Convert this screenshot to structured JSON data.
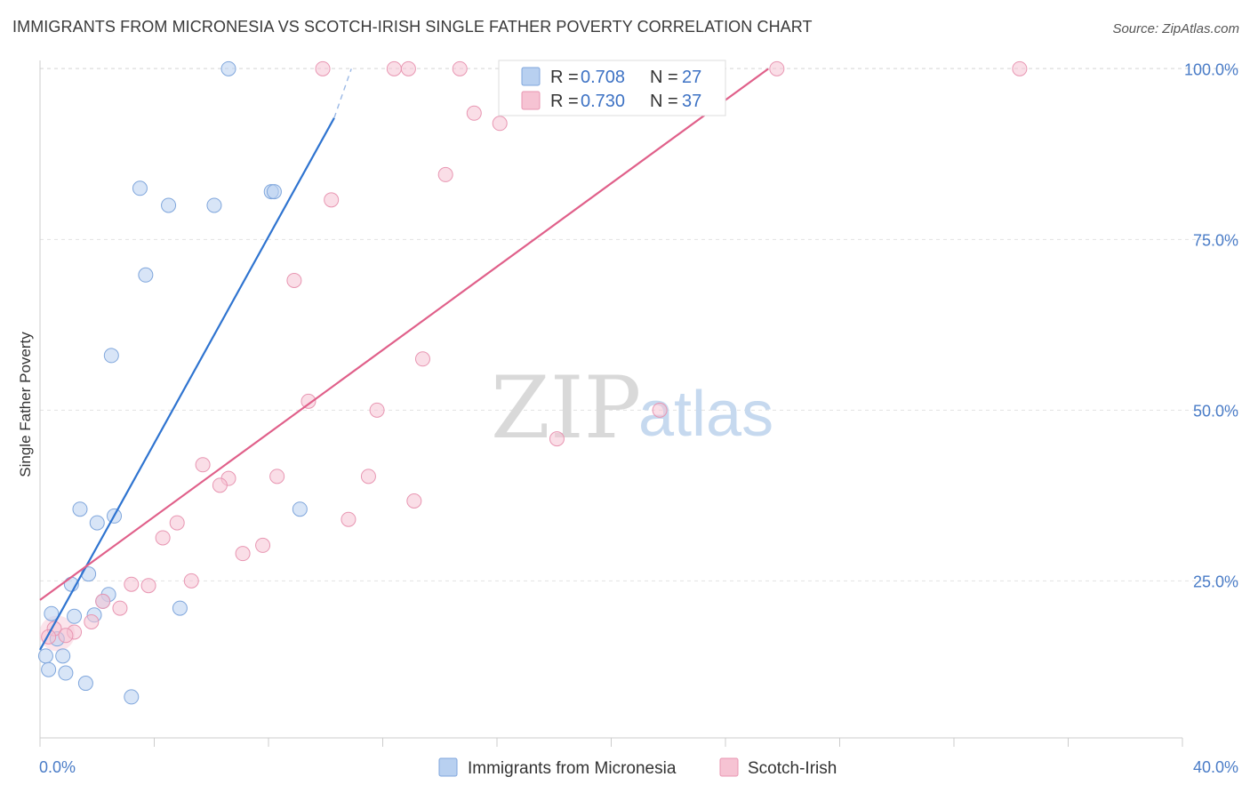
{
  "header": {
    "title": "IMMIGRANTS FROM MICRONESIA VS SCOTCH-IRISH SINGLE FATHER POVERTY CORRELATION CHART",
    "source": "Source: ZipAtlas.com"
  },
  "watermark": {
    "zip": "ZIP",
    "atlas": "atlas"
  },
  "legend": {
    "r_label": "R =",
    "n_label": "N =",
    "entries": [
      {
        "r": "0.708",
        "n": "27"
      },
      {
        "r": "0.730",
        "n": "37"
      }
    ]
  },
  "colors": {
    "blue_fill": "#b8d0f0",
    "blue_stroke": "#7fa6dc",
    "blue_line": "#2f74d0",
    "pink_fill": "#f6c3d3",
    "pink_stroke": "#e896b2",
    "pink_line": "#e0608a",
    "tick_text": "#4a7cc7"
  },
  "chart_data": {
    "type": "scatter",
    "title": "IMMIGRANTS FROM MICRONESIA VS SCOTCH-IRISH SINGLE FATHER POVERTY CORRELATION CHART",
    "xlabel": "",
    "ylabel": "Single Father Poverty",
    "xlim": [
      0,
      40
    ],
    "ylim": [
      2,
      102
    ],
    "x_tick_labels": [
      "0.0%",
      "40.0%"
    ],
    "y_ticks": [
      25,
      50,
      75,
      100
    ],
    "y_tick_labels": [
      "25.0%",
      "50.0%",
      "75.0%",
      "100.0%"
    ],
    "grid": true,
    "legend_position": "top-center",
    "series": [
      {
        "name": "Immigrants from Micronesia",
        "color": "#b8d0f0",
        "r": 0.708,
        "n": 27,
        "trend": {
          "x": [
            0.0,
            10.3
          ],
          "y": [
            14.9,
            92.8
          ],
          "dashed_to": {
            "x": 10.9,
            "y": 100.0
          }
        },
        "points": [
          {
            "x": 6.6,
            "y": 100.0
          },
          {
            "x": 3.5,
            "y": 82.5
          },
          {
            "x": 4.5,
            "y": 80.0
          },
          {
            "x": 6.1,
            "y": 80.0
          },
          {
            "x": 8.1,
            "y": 82.0
          },
          {
            "x": 8.2,
            "y": 82.0
          },
          {
            "x": 3.7,
            "y": 69.8
          },
          {
            "x": 2.5,
            "y": 58.0
          },
          {
            "x": 1.4,
            "y": 35.5
          },
          {
            "x": 2.6,
            "y": 34.5
          },
          {
            "x": 2.0,
            "y": 33.5
          },
          {
            "x": 9.1,
            "y": 35.5
          },
          {
            "x": 1.7,
            "y": 26.0
          },
          {
            "x": 1.1,
            "y": 24.5
          },
          {
            "x": 2.4,
            "y": 23.0
          },
          {
            "x": 2.2,
            "y": 22.0
          },
          {
            "x": 4.9,
            "y": 21.0
          },
          {
            "x": 0.4,
            "y": 20.2
          },
          {
            "x": 1.2,
            "y": 19.8
          },
          {
            "x": 1.9,
            "y": 20.0
          },
          {
            "x": 0.6,
            "y": 16.5
          },
          {
            "x": 0.8,
            "y": 14.0
          },
          {
            "x": 0.2,
            "y": 14.0
          },
          {
            "x": 0.3,
            "y": 12.0
          },
          {
            "x": 0.9,
            "y": 11.5
          },
          {
            "x": 1.6,
            "y": 10.0
          },
          {
            "x": 3.2,
            "y": 8.0
          }
        ]
      },
      {
        "name": "Scotch-Irish",
        "color": "#f6c3d3",
        "r": 0.73,
        "n": 37,
        "trend": {
          "x": [
            0.0,
            25.5
          ],
          "y": [
            22.2,
            100.0
          ]
        },
        "points": [
          {
            "x": 9.9,
            "y": 100.0
          },
          {
            "x": 12.4,
            "y": 100.0
          },
          {
            "x": 12.9,
            "y": 100.0
          },
          {
            "x": 14.7,
            "y": 100.0
          },
          {
            "x": 25.8,
            "y": 100.0
          },
          {
            "x": 34.3,
            "y": 100.0
          },
          {
            "x": 15.2,
            "y": 93.5
          },
          {
            "x": 16.1,
            "y": 92.0
          },
          {
            "x": 14.2,
            "y": 84.5
          },
          {
            "x": 10.2,
            "y": 80.8
          },
          {
            "x": 8.9,
            "y": 69.0
          },
          {
            "x": 13.4,
            "y": 57.5
          },
          {
            "x": 9.4,
            "y": 51.3
          },
          {
            "x": 11.8,
            "y": 50.0
          },
          {
            "x": 21.7,
            "y": 50.0
          },
          {
            "x": 18.1,
            "y": 45.8
          },
          {
            "x": 5.7,
            "y": 42.0
          },
          {
            "x": 8.3,
            "y": 40.3
          },
          {
            "x": 11.5,
            "y": 40.3
          },
          {
            "x": 6.6,
            "y": 40.0
          },
          {
            "x": 6.3,
            "y": 39.0
          },
          {
            "x": 13.1,
            "y": 36.7
          },
          {
            "x": 10.8,
            "y": 34.0
          },
          {
            "x": 4.8,
            "y": 33.5
          },
          {
            "x": 4.3,
            "y": 31.3
          },
          {
            "x": 7.8,
            "y": 30.2
          },
          {
            "x": 7.1,
            "y": 29.0
          },
          {
            "x": 5.3,
            "y": 25.0
          },
          {
            "x": 3.2,
            "y": 24.5
          },
          {
            "x": 3.8,
            "y": 24.3
          },
          {
            "x": 2.2,
            "y": 22.0
          },
          {
            "x": 2.8,
            "y": 21.0
          },
          {
            "x": 1.8,
            "y": 19.0
          },
          {
            "x": 0.5,
            "y": 18.0
          },
          {
            "x": 1.2,
            "y": 17.5
          },
          {
            "x": 0.9,
            "y": 17.0
          },
          {
            "x": 0.3,
            "y": 16.8
          }
        ]
      }
    ]
  }
}
